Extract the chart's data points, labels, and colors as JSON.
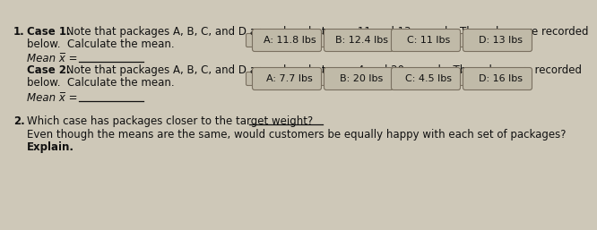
{
  "bg_color": "#cec8b8",
  "text_color": "#111111",
  "case1_bold": "Case 1.",
  "case1_text": " Note that packages A, B, C, and D are values between 11 and 13 pounds. The values are recorded",
  "case1_text2": "below.  Calculate the mean.",
  "case1_packages": [
    "A: 11.8 lbs",
    "B: 12.4 lbs",
    "C: 11 lbs",
    "D: 13 lbs"
  ],
  "mean1_label": "Mean x̅ = ",
  "case2_bold": "Case 2.",
  "case2_text": " Note that packages A, B, C, and D are values between 4 and 20 pounds. The values are recorded",
  "case2_text2": "below.  Calculate the mean.",
  "case2_packages": [
    "A: 7.7 lbs",
    "B: 20 lbs",
    "C: 4.5 lbs",
    "D: 16 lbs"
  ],
  "mean2_label": "Mean x̅ = ",
  "q2_text_bold": "Which case has packages closer to the target weight?",
  "q2_text": "Even though the means are the same, would customers be equally happy with each set of packages?",
  "q2_text2_bold": "Explain.",
  "pkg_bg": "#c0baa8",
  "pkg_edge": "#7a7060",
  "font_size_main": 8.5,
  "font_size_pkg": 8.0,
  "font_size_small": 8.0
}
